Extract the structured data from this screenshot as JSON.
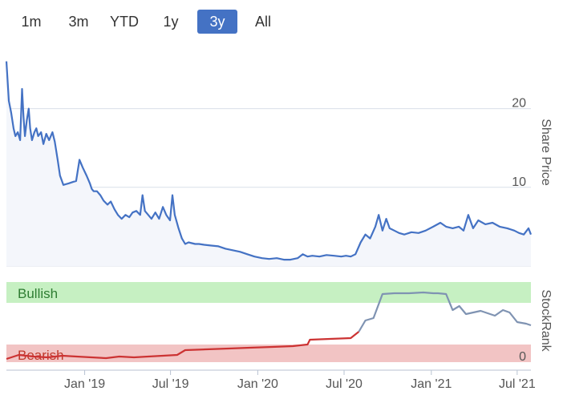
{
  "range_selector": {
    "buttons": [
      "1m",
      "3m",
      "YTD",
      "1y",
      "3y",
      "All"
    ],
    "selected": "3y"
  },
  "colors": {
    "price_line": "#4472c4",
    "price_area": "#f4f6fb",
    "bullish_band": "#c6f0c2",
    "bearish_band": "#f2c4c4",
    "bullish_text": "#2e7d32",
    "bearish_text": "#c0392b",
    "rank_line_bear": "#cc3333",
    "rank_line_bull": "#7f93b2",
    "grid": "#d9dfe8",
    "active_button": "#4472c4"
  },
  "chart_data": [
    {
      "type": "area",
      "ylabel": "Share Price",
      "ylim": [
        0,
        28
      ],
      "yticks": [
        0,
        10,
        20
      ],
      "x_ticks": [
        "Jan '19",
        "Jul '19",
        "Jan '20",
        "Jul '20",
        "Jan '21",
        "Jul '21"
      ],
      "x_tick_dates": [
        "2019-01-01",
        "2019-07-01",
        "2020-01-01",
        "2020-07-01",
        "2021-01-01",
        "2021-07-01"
      ],
      "grid": true,
      "series": [
        {
          "x": [
            "2018-07-20",
            "2018-07-25",
            "2018-07-30",
            "2018-08-04",
            "2018-08-08",
            "2018-08-13",
            "2018-08-18",
            "2018-08-22",
            "2018-08-25",
            "2018-08-28",
            "2018-09-01",
            "2018-09-05",
            "2018-09-08",
            "2018-09-12",
            "2018-09-17",
            "2018-09-21",
            "2018-09-25",
            "2018-10-01",
            "2018-10-06",
            "2018-10-12",
            "2018-10-18",
            "2018-10-25",
            "2018-10-30",
            "2018-11-05",
            "2018-11-10",
            "2018-11-17",
            "2018-11-22",
            "2018-11-28",
            "2018-12-03",
            "2018-12-08",
            "2018-12-14",
            "2018-12-21",
            "2018-12-28",
            "2019-01-05",
            "2019-01-12",
            "2019-01-16",
            "2019-01-20",
            "2019-01-27",
            "2019-02-03",
            "2019-02-10",
            "2019-02-18",
            "2019-02-25",
            "2019-03-05",
            "2019-03-12",
            "2019-03-20",
            "2019-03-28",
            "2019-04-05",
            "2019-04-12",
            "2019-04-20",
            "2019-04-28",
            "2019-05-03",
            "2019-05-08",
            "2019-05-15",
            "2019-05-22",
            "2019-05-30",
            "2019-06-07",
            "2019-06-15",
            "2019-06-22",
            "2019-06-30",
            "2019-07-05",
            "2019-07-10",
            "2019-07-18",
            "2019-07-25",
            "2019-08-01",
            "2019-08-08",
            "2019-08-15",
            "2019-08-22",
            "2019-08-30",
            "2019-09-10",
            "2019-09-25",
            "2019-10-10",
            "2019-10-25",
            "2019-11-10",
            "2019-11-25",
            "2019-12-10",
            "2019-12-25",
            "2020-01-10",
            "2020-01-25",
            "2020-02-10",
            "2020-02-25",
            "2020-03-10",
            "2020-03-25",
            "2020-04-05",
            "2020-04-15",
            "2020-04-25",
            "2020-05-10",
            "2020-05-25",
            "2020-06-10",
            "2020-06-25",
            "2020-07-05",
            "2020-07-15",
            "2020-07-25",
            "2020-08-05",
            "2020-08-15",
            "2020-08-25",
            "2020-09-05",
            "2020-09-12",
            "2020-09-20",
            "2020-09-28",
            "2020-10-05",
            "2020-10-15",
            "2020-10-25",
            "2020-11-05",
            "2020-11-20",
            "2020-12-05",
            "2020-12-20",
            "2021-01-05",
            "2021-01-20",
            "2021-02-01",
            "2021-02-15",
            "2021-02-28",
            "2021-03-10",
            "2021-03-20",
            "2021-03-30",
            "2021-04-10",
            "2021-04-25",
            "2021-05-10",
            "2021-05-25",
            "2021-06-10",
            "2021-06-25",
            "2021-07-05",
            "2021-07-15",
            "2021-07-25",
            "2021-07-30"
          ],
          "values": [
            26.0,
            21.0,
            19.5,
            17.5,
            16.5,
            17.0,
            16.0,
            22.5,
            19.0,
            16.5,
            18.5,
            20.0,
            17.5,
            16.0,
            17.0,
            17.5,
            16.5,
            17.0,
            15.5,
            16.8,
            16.0,
            17.0,
            15.8,
            13.5,
            11.5,
            10.3,
            10.4,
            10.5,
            10.6,
            10.7,
            10.8,
            13.5,
            12.5,
            11.5,
            10.5,
            9.8,
            9.5,
            9.5,
            9.0,
            8.3,
            7.8,
            8.2,
            7.2,
            6.5,
            6.0,
            6.5,
            6.2,
            6.8,
            7.0,
            6.5,
            9.0,
            7.0,
            6.5,
            6.0,
            6.8,
            6.0,
            7.5,
            6.5,
            5.8,
            9.0,
            6.5,
            4.8,
            3.5,
            2.8,
            3.0,
            2.9,
            2.8,
            2.8,
            2.7,
            2.6,
            2.5,
            2.2,
            2.0,
            1.8,
            1.5,
            1.2,
            1.0,
            0.9,
            1.0,
            0.8,
            0.8,
            1.0,
            1.5,
            1.2,
            1.3,
            1.2,
            1.4,
            1.3,
            1.2,
            1.3,
            1.2,
            1.5,
            3.0,
            4.0,
            3.5,
            5.0,
            6.5,
            4.5,
            6.0,
            4.8,
            4.5,
            4.2,
            4.0,
            4.3,
            4.2,
            4.5,
            5.0,
            5.5,
            5.0,
            4.8,
            5.0,
            4.5,
            6.5,
            4.8,
            5.8,
            5.3,
            5.5,
            5.0,
            4.8,
            4.5,
            4.2,
            4.0,
            4.8,
            4.0
          ]
        }
      ]
    },
    {
      "type": "line",
      "ylabel": "StockRank",
      "ylim": [
        0,
        100
      ],
      "yticks": [
        0
      ],
      "bands": [
        "Bullish",
        "Bearish"
      ],
      "series": [
        {
          "x": [
            "2018-07-20",
            "2018-08-15",
            "2018-09-15",
            "2018-10-15",
            "2018-11-15",
            "2018-12-15",
            "2019-01-15",
            "2019-02-15",
            "2019-03-15",
            "2019-04-15",
            "2019-05-15",
            "2019-06-15",
            "2019-07-15",
            "2019-08-01",
            "2019-09-15",
            "2019-11-01",
            "2019-12-15",
            "2020-02-01",
            "2020-03-15",
            "2020-04-15",
            "2020-04-20",
            "2020-06-01",
            "2020-07-15",
            "2020-08-01",
            "2020-08-15",
            "2020-09-01",
            "2020-09-20",
            "2020-10-15",
            "2020-11-15",
            "2020-12-15",
            "2021-01-05",
            "2021-01-15",
            "2021-02-01",
            "2021-02-15",
            "2021-03-01",
            "2021-03-15",
            "2021-04-15",
            "2021-05-15",
            "2021-06-01",
            "2021-06-15",
            "2021-07-01",
            "2021-07-20",
            "2021-07-30"
          ],
          "values": [
            4,
            9,
            7,
            6,
            8,
            7,
            6,
            5,
            7,
            6,
            7,
            8,
            9,
            15,
            16,
            17,
            18,
            19,
            20,
            22,
            28,
            29,
            30,
            38,
            52,
            55,
            85,
            86,
            86,
            87,
            86,
            86,
            85,
            65,
            70,
            60,
            64,
            58,
            65,
            62,
            50,
            48,
            46
          ]
        }
      ]
    }
  ]
}
